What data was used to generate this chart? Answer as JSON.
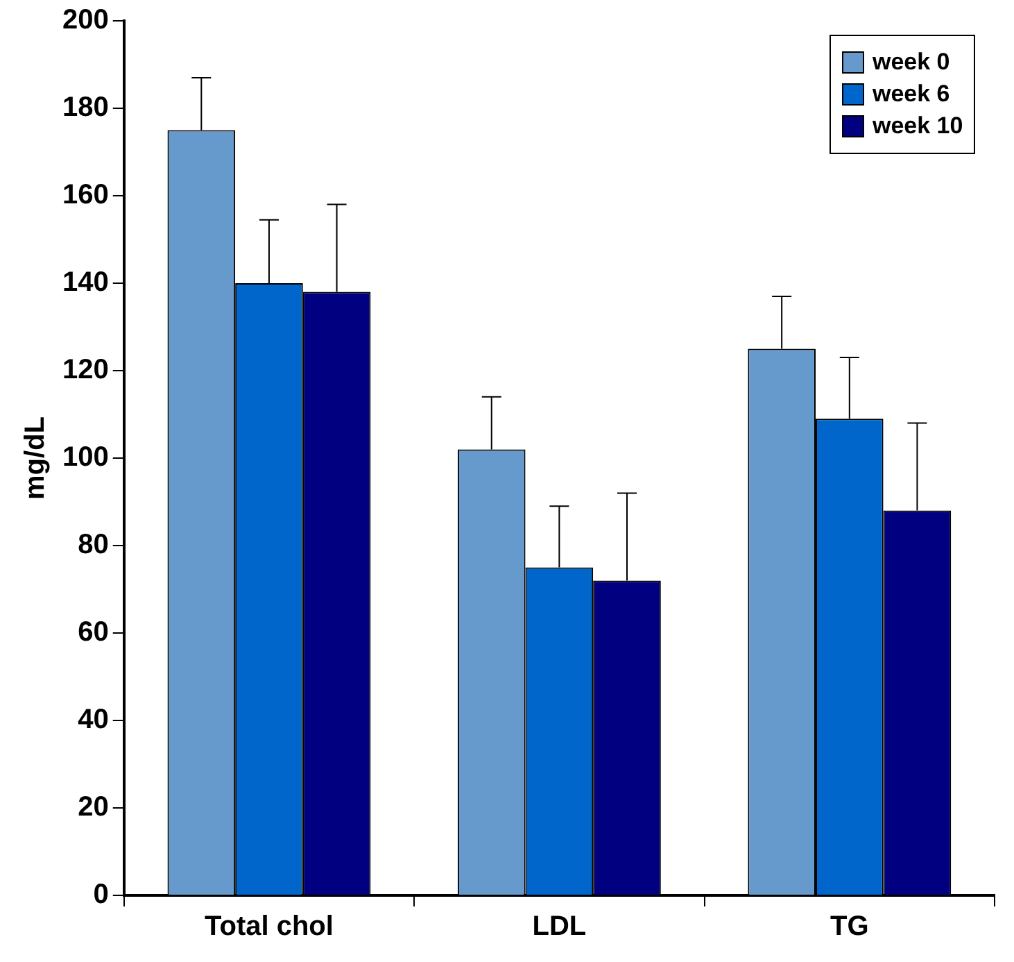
{
  "chart_data": {
    "type": "bar",
    "ylabel": "mg/dL",
    "categories": [
      "Total chol",
      "LDL",
      "TG"
    ],
    "series": [
      {
        "name": "week 0",
        "color": "#6699cc",
        "values": [
          175,
          102,
          125
        ],
        "errors": [
          12,
          12,
          12
        ]
      },
      {
        "name": "week 6",
        "color": "#0066cc",
        "values": [
          140,
          75,
          109
        ],
        "errors": [
          14.5,
          14,
          14
        ]
      },
      {
        "name": "week 10",
        "color": "#000080",
        "values": [
          138,
          72,
          88
        ],
        "errors": [
          20,
          20,
          20
        ]
      }
    ],
    "ylim": [
      0,
      200
    ],
    "yticks": [
      0,
      20,
      40,
      60,
      80,
      100,
      120,
      140,
      160,
      180,
      200
    ],
    "grid": false,
    "legend": "top right"
  }
}
